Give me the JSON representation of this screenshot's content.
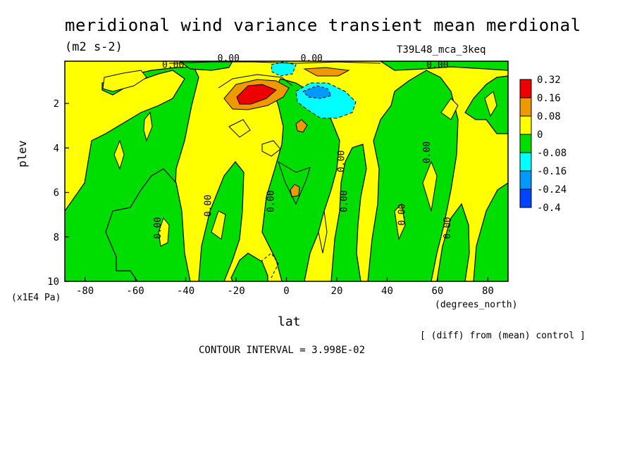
{
  "chart_data": {
    "type": "heatmap",
    "title": "meridional wind variance transient mean merdional",
    "units": "(m2 s-2)",
    "run_label": "T39L48_mca_3keq",
    "xlabel": "lat",
    "xunits": "(degrees_north)",
    "ylabel": "plev",
    "yunits": "(x1E4 Pa)",
    "note": "[ (diff) from (mean) control ]",
    "contour_interval": "CONTOUR INTERVAL = 3.998E-02",
    "xlim": [
      -88,
      88
    ],
    "ylim": [
      10,
      0.1
    ],
    "xticks": [
      "-80",
      "-60",
      "-40",
      "-20",
      "0",
      "20",
      "40",
      "60",
      "80"
    ],
    "yticks": [
      "2",
      "4",
      "6",
      "8",
      "10"
    ],
    "contour_label": "0.00",
    "colorbar": {
      "levels": [
        "0.32",
        "0.16",
        "0.08",
        "0",
        "-0.08",
        "-0.16",
        "-0.24",
        "-0.4"
      ],
      "colors": [
        "#ee0000",
        "#ee9900",
        "#ffff00",
        "#00dd00",
        "#00ffff",
        "#0099ff",
        "#0044ff"
      ]
    },
    "regions": [
      {
        "sign": "positive",
        "color": "#ee0000",
        "lat": -15,
        "plev": 1.6,
        "label": "max ~0.32"
      },
      {
        "sign": "positive",
        "color": "#ee9900",
        "lat": 7,
        "plev": 3.0
      },
      {
        "sign": "positive",
        "color": "#ee9900",
        "lat": 4,
        "plev": 6.0
      },
      {
        "sign": "negative",
        "color": "#00ffff",
        "lat": 14,
        "plev": 1.8
      },
      {
        "sign": "negative",
        "color": "#0099ff",
        "lat": 12,
        "plev": 1.4
      },
      {
        "sign": "negative",
        "color": "#00ffff",
        "lat": -3,
        "plev": 0.4
      }
    ]
  }
}
